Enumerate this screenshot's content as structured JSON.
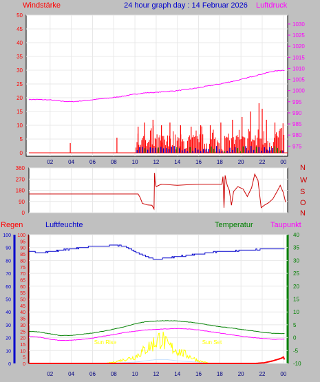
{
  "header": {
    "title": "24 hour graph day : 14 Februar 2026",
    "left_label": "Windstärke",
    "right_label": "Luftdruck"
  },
  "bottom_labels": {
    "regen": "Regen",
    "luftfeuchte": "Luftfeuchte",
    "temperatur": "Temperatur",
    "taupunkt": "Taupunkt",
    "sun_rise": "Sun Rise",
    "sun_set": "Sun Set"
  },
  "colors": {
    "background": "#c0c0c0",
    "wind": "#ff0000",
    "gust_blue": "#0000cc",
    "gust_green": "#008000",
    "pressure": "#ff00ff",
    "direction": "#cc0000",
    "humidity": "#0000cc",
    "temperature": "#008000",
    "dewpoint": "#ff00ff",
    "rain": "#ff0000",
    "solar": "#ffff00",
    "uv": "#c8e0ff",
    "time_axis": "#000080"
  },
  "chart_data": [
    {
      "type": "line",
      "panel": "wind_pressure",
      "x_ticks": [
        "02",
        "04",
        "06",
        "08",
        "10",
        "12",
        "14",
        "16",
        "18",
        "20",
        "22",
        "00"
      ],
      "y_left_ticks": [
        "0",
        "5",
        "10",
        "15",
        "20",
        "25",
        "30",
        "35",
        "40",
        "45",
        "50"
      ],
      "y_left_range": [
        0,
        50
      ],
      "y_right_ticks": [
        "975",
        "980",
        "985",
        "990",
        "995",
        "1000",
        "1005",
        "1010",
        "1015",
        "1020",
        "1025",
        "1030"
      ],
      "y_right_range": [
        972,
        1034
      ],
      "series": [
        {
          "name": "Luftdruck",
          "axis": "right",
          "hours": [
            0,
            1,
            2,
            3,
            4,
            5,
            6,
            7,
            8,
            9,
            10,
            11,
            12,
            13,
            14,
            15,
            16,
            17,
            18,
            19,
            20,
            21,
            22,
            23,
            24
          ],
          "values": [
            996,
            996,
            995.8,
            995.3,
            995,
            995.4,
            995.9,
            996.4,
            996.9,
            997.6,
            998.4,
            999,
            999.2,
            999.6,
            1000,
            1000.6,
            1001.3,
            1002.2,
            1003,
            1004,
            1005,
            1006.3,
            1007.5,
            1008.7,
            1009.2
          ]
        },
        {
          "name": "wind",
          "axis": "left",
          "peaks": [
            [
              3.9,
              3.5
            ],
            [
              8.3,
              5.5
            ],
            [
              10.3,
              9.5
            ],
            [
              10.9,
              11
            ],
            [
              11.7,
              12
            ],
            [
              12.5,
              10
            ],
            [
              13.3,
              11
            ],
            [
              14.3,
              10
            ],
            [
              15.3,
              9.5
            ],
            [
              16.2,
              10
            ],
            [
              17.1,
              10
            ],
            [
              18.1,
              11
            ],
            [
              19.2,
              12
            ],
            [
              20.1,
              13
            ],
            [
              20.9,
              15
            ],
            [
              21.7,
              18
            ],
            [
              22.0,
              16
            ],
            [
              22.4,
              12
            ],
            [
              23.2,
              11
            ],
            [
              23.8,
              9
            ]
          ]
        }
      ]
    },
    {
      "type": "line",
      "panel": "wind_direction",
      "x_ticks": [
        "02",
        "04",
        "06",
        "08",
        "10",
        "12",
        "14",
        "16",
        "18",
        "20",
        "22",
        "00"
      ],
      "y_left_ticks": [
        "0",
        "90",
        "180",
        "270",
        "360"
      ],
      "y_left_range": [
        0,
        360
      ],
      "compass_labels": [
        "N",
        "W",
        "S",
        "O",
        "N"
      ],
      "series": [
        {
          "name": "direction",
          "points": [
            [
              0,
              150
            ],
            [
              10.3,
              150
            ],
            [
              10.5,
              120
            ],
            [
              10.7,
              75
            ],
            [
              11.2,
              62
            ],
            [
              11.6,
              60
            ],
            [
              11.8,
              30
            ],
            [
              11.85,
              320
            ],
            [
              11.9,
              250
            ],
            [
              12.0,
              210
            ],
            [
              12.5,
              230
            ],
            [
              14.0,
              220
            ],
            [
              16.0,
              230
            ],
            [
              18.2,
              230
            ],
            [
              18.3,
              290
            ],
            [
              18.4,
              40
            ],
            [
              18.5,
              300
            ],
            [
              18.7,
              220
            ],
            [
              18.9,
              180
            ],
            [
              19.1,
              60
            ],
            [
              19.3,
              170
            ],
            [
              19.7,
              210
            ],
            [
              20.2,
              190
            ],
            [
              20.6,
              130
            ],
            [
              21.0,
              200
            ],
            [
              21.3,
              310
            ],
            [
              21.6,
              260
            ],
            [
              21.9,
              40
            ],
            [
              22.2,
              60
            ],
            [
              22.6,
              80
            ],
            [
              23.0,
              110
            ],
            [
              23.4,
              170
            ],
            [
              23.7,
              220
            ],
            [
              24.0,
              160
            ],
            [
              24.2,
              85
            ]
          ]
        }
      ]
    },
    {
      "type": "line",
      "panel": "humidity_temperature_rain",
      "x_ticks": [
        "02",
        "04",
        "06",
        "08",
        "10",
        "12",
        "14",
        "16",
        "18",
        "20",
        "22",
        "00"
      ],
      "y_humidity_ticks": [
        "0",
        "10",
        "20",
        "30",
        "40",
        "50",
        "60",
        "70",
        "80",
        "90",
        "100"
      ],
      "y_humidity_range": [
        0,
        100
      ],
      "y_rain_ticks": [
        "0",
        "5",
        "10",
        "15",
        "20",
        "25",
        "30",
        "35",
        "40",
        "45",
        "50",
        "55",
        "60",
        "65",
        "70",
        "75",
        "80",
        "85",
        "90",
        "95",
        "100"
      ],
      "y_rain_range": [
        0,
        100
      ],
      "y_temperature_ticks": [
        "-10",
        "-5",
        "0",
        "5",
        "10",
        "15",
        "20",
        "25",
        "30",
        "35",
        "40"
      ],
      "y_temperature_range": [
        -10,
        40
      ],
      "series": [
        {
          "name": "Luftfeuchte",
          "hours": [
            0,
            1,
            2,
            3,
            4,
            5,
            6,
            7,
            8,
            9,
            10,
            11,
            12,
            13,
            14,
            15,
            16,
            17,
            18,
            19,
            20,
            21,
            22,
            23,
            24
          ],
          "values": [
            87,
            86,
            87,
            88,
            89,
            90,
            91,
            91,
            92,
            91,
            87,
            83,
            81,
            82,
            83,
            84,
            85,
            86,
            87,
            87,
            88,
            88,
            89,
            89,
            89
          ]
        },
        {
          "name": "Temperatur",
          "hours": [
            0,
            1,
            2,
            3,
            4,
            5,
            6,
            7,
            8,
            9,
            10,
            11,
            12,
            13,
            14,
            15,
            16,
            17,
            18,
            19,
            20,
            21,
            22,
            23,
            24
          ],
          "values": [
            2.5,
            2.2,
            1.5,
            0.8,
            0.9,
            1.3,
            1.8,
            2.5,
            3.3,
            4.2,
            5.4,
            6.2,
            6.5,
            6.6,
            6.5,
            6.1,
            5.6,
            4.9,
            4.3,
            3.8,
            3.2,
            2.7,
            2.1,
            1.7,
            1.6
          ]
        },
        {
          "name": "Taupunkt",
          "hours": [
            0,
            1,
            2,
            3,
            4,
            5,
            6,
            7,
            8,
            9,
            10,
            11,
            12,
            13,
            14,
            15,
            16,
            17,
            18,
            19,
            20,
            21,
            22,
            23,
            24
          ],
          "values": [
            0.5,
            0.2,
            -0.6,
            -1.1,
            -1.0,
            -0.7,
            -0.2,
            0.6,
            1.2,
            2.0,
            2.5,
            3.0,
            3.2,
            3.4,
            3.6,
            3.4,
            3.0,
            2.4,
            1.8,
            1.2,
            0.6,
            0.1,
            -0.3,
            -0.6,
            -0.6
          ]
        },
        {
          "name": "Regen",
          "hours": [
            0,
            21.4,
            22.2,
            23.0,
            23.8,
            24.0,
            24.2
          ],
          "values": [
            0,
            0,
            0.5,
            2,
            4,
            5,
            1
          ]
        },
        {
          "name": "solar",
          "hours": [
            7.2,
            8.0,
            9.0,
            10.0,
            11.0,
            12.0,
            12.5,
            13.0,
            14.0,
            15.0,
            16.0,
            17.1
          ],
          "values": [
            0,
            1,
            3,
            5,
            11,
            17,
            20,
            14,
            10,
            6,
            2,
            0
          ]
        },
        {
          "name": "uv",
          "hours": [
            7.2,
            10.0,
            12.0,
            13.0,
            14.0,
            16.0,
            17.1
          ],
          "values": [
            0,
            1,
            3,
            3,
            2,
            1,
            0
          ]
        }
      ]
    }
  ]
}
